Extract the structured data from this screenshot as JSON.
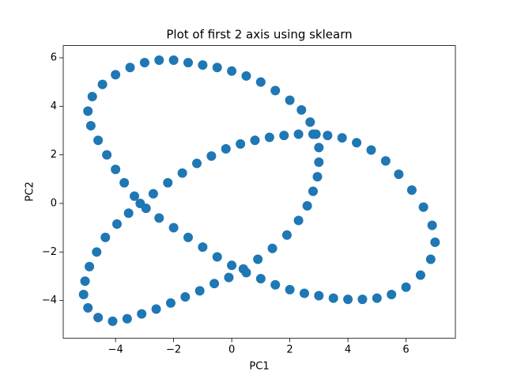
{
  "chart_data": {
    "type": "scatter",
    "title": "Plot of first 2 axis using sklearn",
    "xlabel": "PC1",
    "ylabel": "PC2",
    "color": "#1f77b4",
    "x": [
      -3,
      -2.5,
      -2,
      -1.5,
      -1,
      -0.5,
      0,
      0.5,
      1,
      1.5,
      2,
      2.4,
      2.7,
      2.9,
      3.0,
      3.0,
      2.95,
      2.8,
      2.6,
      2.3,
      1.9,
      1.4,
      0.9,
      0.4,
      -0.1,
      -0.6,
      -1.1,
      -1.6,
      -2.1,
      -2.6,
      -3.1,
      -3.6,
      -4.1,
      -4.6,
      -4.95,
      -5.1,
      -5.05,
      -4.9,
      -4.65,
      -4.35,
      -3.95,
      -3.55,
      -3.15,
      -2.7,
      -2.2,
      -1.7,
      -1.2,
      -0.7,
      -0.2,
      0.3,
      0.8,
      1.3,
      1.8,
      2.3,
      2.8,
      3.3,
      3.8,
      4.3,
      4.8,
      5.3,
      5.75,
      6.2,
      6.6,
      6.9,
      7.0,
      6.85,
      6.5,
      6.0,
      5.5,
      5.0,
      4.5,
      4.0,
      3.5,
      3.0,
      2.5,
      2.0,
      1.5,
      1.0,
      0.5,
      0.0,
      -0.5,
      -1.0,
      -1.5,
      -2.0,
      -2.5,
      -2.95,
      -3.35,
      -3.7,
      -4.0,
      -4.3,
      -4.6,
      -4.85,
      -4.95,
      -4.8,
      -4.45,
      -4.0,
      -3.5
    ],
    "y": [
      5.8,
      5.9,
      5.9,
      5.8,
      5.7,
      5.6,
      5.45,
      5.25,
      5.0,
      4.65,
      4.25,
      3.85,
      3.35,
      2.85,
      2.3,
      1.7,
      1.1,
      0.5,
      -0.1,
      -0.7,
      -1.3,
      -1.85,
      -2.3,
      -2.7,
      -3.05,
      -3.3,
      -3.6,
      -3.85,
      -4.1,
      -4.35,
      -4.55,
      -4.75,
      -4.85,
      -4.7,
      -4.3,
      -3.75,
      -3.2,
      -2.6,
      -2.0,
      -1.4,
      -0.85,
      -0.4,
      0,
      0.4,
      0.85,
      1.25,
      1.65,
      1.95,
      2.25,
      2.45,
      2.6,
      2.72,
      2.8,
      2.85,
      2.85,
      2.8,
      2.7,
      2.5,
      2.2,
      1.75,
      1.2,
      0.55,
      -0.15,
      -0.9,
      -1.6,
      -2.3,
      -2.95,
      -3.45,
      -3.75,
      -3.9,
      -3.95,
      -3.95,
      -3.9,
      -3.8,
      -3.7,
      -3.55,
      -3.35,
      -3.1,
      -2.85,
      -2.55,
      -2.2,
      -1.8,
      -1.4,
      -1.0,
      -0.6,
      -0.2,
      0.3,
      0.85,
      1.4,
      2.0,
      2.6,
      3.2,
      3.8,
      4.4,
      4.9,
      5.3,
      5.6
    ],
    "xlim": [
      -5.8,
      7.7
    ],
    "ylim": [
      -5.55,
      6.5
    ],
    "xticks": [
      {
        "value": -4,
        "label": "−4"
      },
      {
        "value": -2,
        "label": "−2"
      },
      0,
      2,
      4,
      6
    ],
    "yticks": [
      {
        "value": -4,
        "label": "−4"
      },
      {
        "value": -2,
        "label": "−2"
      },
      0,
      2,
      4,
      6
    ],
    "grid": false
  }
}
